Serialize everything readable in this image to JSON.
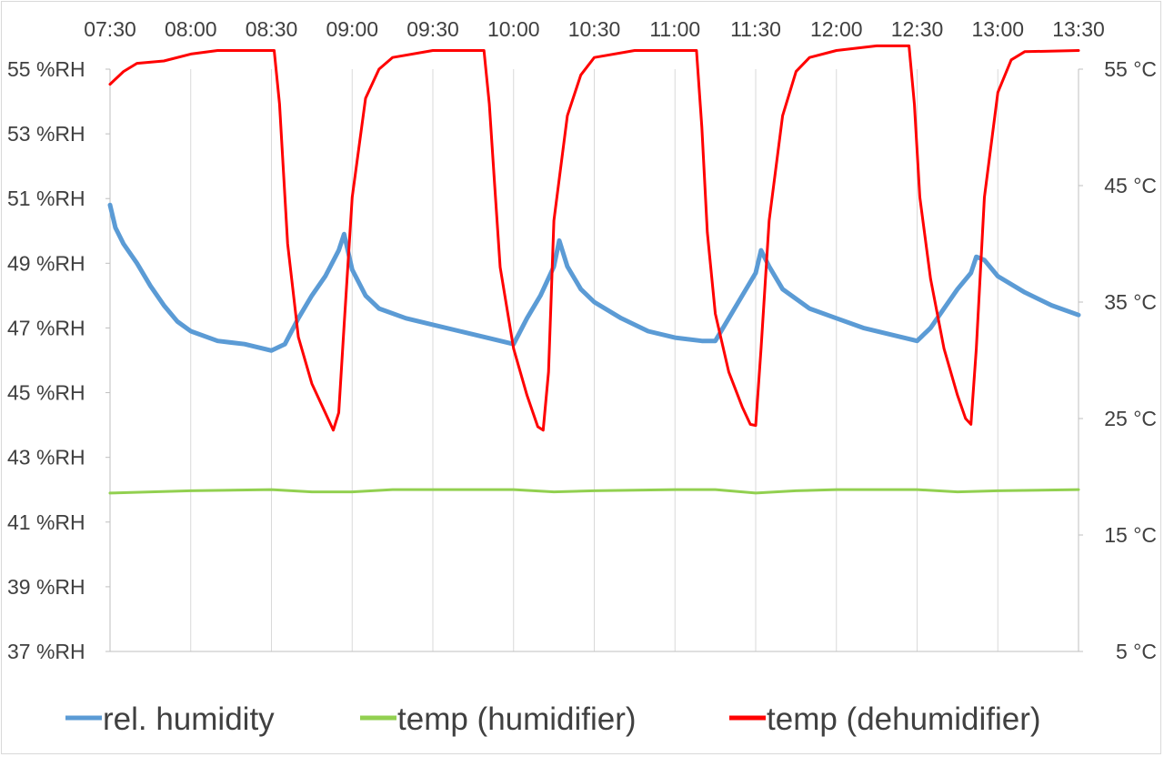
{
  "chart_data": {
    "type": "line",
    "title": "",
    "x_tick_labels": [
      "07:30",
      "08:00",
      "08:30",
      "09:00",
      "09:30",
      "10:00",
      "10:30",
      "11:00",
      "11:30",
      "12:00",
      "12:30",
      "13:00",
      "13:30"
    ],
    "xlim": [
      "07:30",
      "13:30"
    ],
    "y_left": {
      "tick_labels": [
        "55 %RH",
        "53 %RH",
        "51 %RH",
        "49 %RH",
        "47 %RH",
        "45 %RH",
        "43 %RH",
        "41 %RH",
        "39 %RH",
        "37 %RH"
      ],
      "range": [
        37,
        55
      ],
      "unit": "%RH"
    },
    "y_right": {
      "tick_labels": [
        "55 °C",
        "45 °C",
        "35 °C",
        "25 °C",
        "15 °C",
        "5 °C"
      ],
      "range": [
        5,
        55
      ],
      "unit": "°C"
    },
    "grid": "vertical",
    "legend_position": "bottom",
    "series": [
      {
        "name": "rel. humidity",
        "axis": "left",
        "color": "#5b9bd5",
        "x": [
          "07:30",
          "07:32",
          "07:35",
          "07:40",
          "07:45",
          "07:50",
          "07:55",
          "08:00",
          "08:10",
          "08:20",
          "08:30",
          "08:35",
          "08:40",
          "08:45",
          "08:50",
          "08:55",
          "08:57",
          "09:00",
          "09:05",
          "09:10",
          "09:20",
          "09:30",
          "09:40",
          "09:50",
          "10:00",
          "10:05",
          "10:10",
          "10:15",
          "10:17",
          "10:20",
          "10:25",
          "10:30",
          "10:40",
          "10:50",
          "11:00",
          "11:10",
          "11:15",
          "11:20",
          "11:25",
          "11:30",
          "11:32",
          "11:35",
          "11:40",
          "11:50",
          "12:00",
          "12:10",
          "12:20",
          "12:30",
          "12:35",
          "12:40",
          "12:45",
          "12:50",
          "12:52",
          "12:55",
          "13:00",
          "13:10",
          "13:20",
          "13:30"
        ],
        "y": [
          50.8,
          50.1,
          49.6,
          49.0,
          48.3,
          47.7,
          47.2,
          46.9,
          46.6,
          46.5,
          46.3,
          46.5,
          47.3,
          48.0,
          48.6,
          49.4,
          49.9,
          48.8,
          48.0,
          47.6,
          47.3,
          47.1,
          46.9,
          46.7,
          46.5,
          47.3,
          48.0,
          48.9,
          49.7,
          48.9,
          48.2,
          47.8,
          47.3,
          46.9,
          46.7,
          46.6,
          46.6,
          47.3,
          48.0,
          48.7,
          49.4,
          48.9,
          48.2,
          47.6,
          47.3,
          47.0,
          46.8,
          46.6,
          47.0,
          47.6,
          48.2,
          48.7,
          49.2,
          49.1,
          48.6,
          48.1,
          47.7,
          47.4
        ]
      },
      {
        "name": "temp (humidifier)",
        "axis": "right",
        "color": "#92d050",
        "x": [
          "07:30",
          "08:00",
          "08:30",
          "08:45",
          "09:00",
          "09:15",
          "09:30",
          "10:00",
          "10:15",
          "10:30",
          "11:00",
          "11:15",
          "11:30",
          "11:45",
          "12:00",
          "12:30",
          "12:45",
          "13:00",
          "13:30"
        ],
        "y": [
          18.6,
          18.8,
          18.9,
          18.7,
          18.7,
          18.9,
          18.9,
          18.9,
          18.7,
          18.8,
          18.9,
          18.9,
          18.6,
          18.8,
          18.9,
          18.9,
          18.7,
          18.8,
          18.9
        ]
      },
      {
        "name": "temp (dehumidifier)",
        "axis": "right",
        "color": "#ff0000",
        "x": [
          "07:30",
          "07:35",
          "07:40",
          "07:50",
          "08:00",
          "08:10",
          "08:20",
          "08:31",
          "08:33",
          "08:36",
          "08:40",
          "08:45",
          "08:50",
          "08:53",
          "08:55",
          "08:57",
          "09:00",
          "09:05",
          "09:10",
          "09:15",
          "09:30",
          "09:45",
          "09:49",
          "09:51",
          "09:53",
          "09:55",
          "10:00",
          "10:05",
          "10:09",
          "10:11",
          "10:13",
          "10:15",
          "10:20",
          "10:25",
          "10:30",
          "10:45",
          "11:00",
          "11:08",
          "11:10",
          "11:12",
          "11:15",
          "11:20",
          "11:25",
          "11:28",
          "11:30",
          "11:32",
          "11:35",
          "11:40",
          "11:45",
          "11:50",
          "12:00",
          "12:15",
          "12:27",
          "12:29",
          "12:31",
          "12:35",
          "12:40",
          "12:45",
          "12:48",
          "12:50",
          "12:52",
          "12:55",
          "13:00",
          "13:05",
          "13:10",
          "13:30"
        ],
        "y": [
          53.7,
          54.8,
          55.5,
          55.7,
          56.3,
          56.6,
          56.6,
          56.6,
          52.0,
          40.0,
          32.0,
          28.0,
          25.5,
          24.0,
          25.5,
          33.0,
          44.0,
          52.5,
          55.0,
          56.0,
          56.6,
          56.6,
          56.6,
          52.0,
          45.0,
          38.0,
          31.0,
          27.0,
          24.3,
          24.0,
          29.0,
          42.0,
          51.0,
          54.5,
          56.0,
          56.6,
          56.6,
          56.6,
          50.0,
          41.0,
          34.0,
          29.0,
          26.0,
          24.5,
          24.4,
          31.0,
          42.0,
          51.0,
          54.8,
          56.0,
          56.6,
          57.0,
          57.0,
          52.0,
          44.0,
          37.0,
          31.0,
          27.0,
          25.0,
          24.5,
          31.0,
          44.0,
          53.0,
          55.8,
          56.5,
          56.6
        ]
      }
    ]
  }
}
